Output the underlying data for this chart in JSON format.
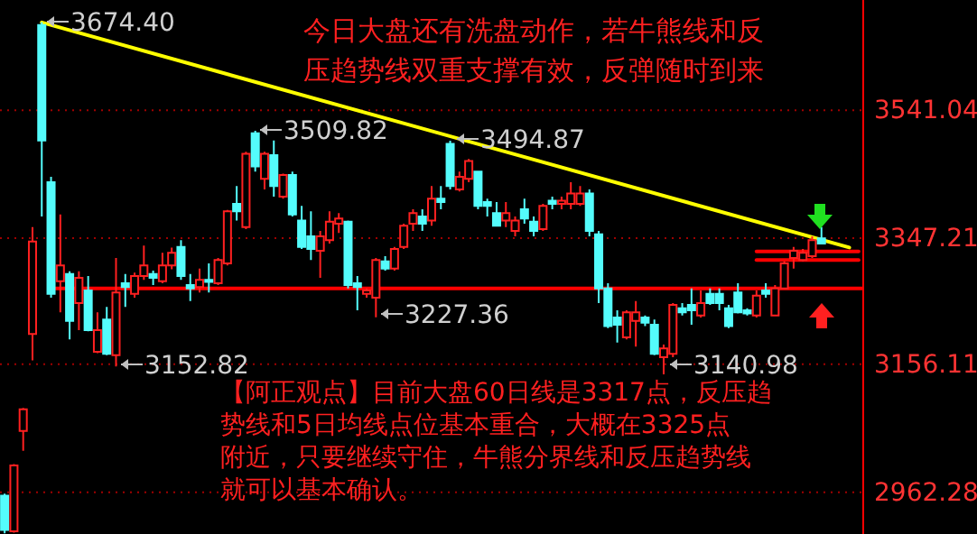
{
  "chart_data": {
    "type": "candlestick",
    "categories": [
      null,
      null,
      null,
      null,
      null,
      null,
      null,
      null,
      null,
      null,
      null,
      null,
      null,
      null,
      null,
      null,
      null,
      null,
      null,
      null,
      null,
      null,
      null,
      null,
      null,
      null,
      null,
      null,
      null,
      null,
      null,
      null,
      null,
      null,
      null,
      null,
      null,
      null,
      null,
      null,
      null,
      null,
      null,
      null,
      null,
      null,
      null,
      null,
      null,
      null,
      null,
      null,
      null,
      null,
      null,
      null,
      null,
      null,
      null,
      null,
      null,
      null,
      null,
      null,
      null,
      null,
      null,
      null,
      null,
      null,
      null,
      null,
      null,
      null,
      null,
      null,
      null,
      null,
      null,
      null,
      null,
      null,
      null,
      null,
      null,
      null,
      null,
      null,
      null,
      null,
      null,
      null,
      null
    ],
    "ohlc": [
      [
        2957,
        2960,
        2900,
        2905
      ],
      [
        2903,
        3005,
        2901,
        3003
      ],
      [
        3055,
        3090,
        3025,
        3088
      ],
      [
        3202,
        3364,
        3162,
        3342
      ],
      [
        3670,
        3674.4,
        3380,
        3495
      ],
      [
        3432,
        3440,
        3257,
        3263
      ],
      [
        3282,
        3383,
        3235,
        3306
      ],
      [
        3293,
        3297,
        3194,
        3222
      ],
      [
        3249,
        3297,
        3208,
        3287
      ],
      [
        3268,
        3290,
        3206,
        3208
      ],
      [
        3175,
        3235,
        3173,
        3208
      ],
      [
        3224,
        3243,
        3170,
        3172
      ],
      [
        3170,
        3317,
        3152.82,
        3265
      ],
      [
        3279,
        3293,
        3243,
        3273
      ],
      [
        3263,
        3295,
        3257,
        3290
      ],
      [
        3290,
        3336,
        3284,
        3306
      ],
      [
        3293,
        3298,
        3276,
        3287
      ],
      [
        3282,
        3325,
        3279,
        3306
      ],
      [
        3306,
        3333,
        3300,
        3325
      ],
      [
        3334,
        3344,
        3284,
        3290
      ],
      [
        3276,
        3293,
        3252,
        3271
      ],
      [
        3273,
        3301,
        3265,
        3284
      ],
      [
        3284,
        3309,
        3265,
        3281
      ],
      [
        3279,
        3317,
        3276,
        3314
      ],
      [
        3309,
        3390,
        3306,
        3388
      ],
      [
        3399,
        3426,
        3374,
        3388
      ],
      [
        3364,
        3478,
        3361,
        3475
      ],
      [
        3506,
        3509.82,
        3448,
        3456
      ],
      [
        3437,
        3478,
        3421,
        3475
      ],
      [
        3473,
        3495,
        3410,
        3426
      ],
      [
        3410,
        3445,
        3407,
        3443
      ],
      [
        3443,
        3448,
        3380,
        3383
      ],
      [
        3374,
        3396,
        3331,
        3334
      ],
      [
        3350,
        3388,
        3314,
        3331
      ],
      [
        3328,
        3358,
        3287,
        3350
      ],
      [
        3344,
        3388,
        3339,
        3372
      ],
      [
        3369,
        3385,
        3355,
        3377
      ],
      [
        3372,
        3374,
        3271,
        3276
      ],
      [
        3279,
        3290,
        3238,
        3273
      ],
      [
        3263,
        3271,
        3257,
        3268
      ],
      [
        3257,
        3317,
        3227.36,
        3314
      ],
      [
        3312,
        3320,
        3298,
        3301
      ],
      [
        3301,
        3334,
        3298,
        3331
      ],
      [
        3334,
        3369,
        3331,
        3366
      ],
      [
        3369,
        3391,
        3358,
        3385
      ],
      [
        3380,
        3391,
        3358,
        3369
      ],
      [
        3374,
        3426,
        3366,
        3407
      ],
      [
        3407,
        3426,
        3391,
        3402
      ],
      [
        3490,
        3494.87,
        3421,
        3426
      ],
      [
        3421,
        3448,
        3418,
        3440
      ],
      [
        3437,
        3467,
        3432,
        3464
      ],
      [
        3448,
        3448,
        3391,
        3396
      ],
      [
        3402,
        3407,
        3380,
        3396
      ],
      [
        3385,
        3402,
        3366,
        3366
      ],
      [
        3374,
        3402,
        3364,
        3385
      ],
      [
        3358,
        3380,
        3350,
        3374
      ],
      [
        3391,
        3407,
        3369,
        3377
      ],
      [
        3372,
        3380,
        3350,
        3358
      ],
      [
        3361,
        3399,
        3358,
        3396
      ],
      [
        3404,
        3410,
        3391,
        3399
      ],
      [
        3399,
        3410,
        3391,
        3404
      ],
      [
        3399,
        3432,
        3391,
        3415
      ],
      [
        3399,
        3426,
        3396,
        3415
      ],
      [
        3415,
        3421,
        3350,
        3358
      ],
      [
        3353,
        3358,
        3249,
        3271
      ],
      [
        3271,
        3279,
        3211,
        3214
      ],
      [
        3227,
        3238,
        3189,
        3216
      ],
      [
        3197,
        3238,
        3194,
        3235
      ],
      [
        3222,
        3252,
        3183,
        3235
      ],
      [
        3227,
        3230,
        3214,
        3219
      ],
      [
        3216,
        3224,
        3170,
        3172
      ],
      [
        3167,
        3186,
        3140.98,
        3180
      ],
      [
        3172,
        3249,
        3167,
        3246
      ],
      [
        3241,
        3249,
        3230,
        3235
      ],
      [
        3246,
        3271,
        3216,
        3238
      ],
      [
        3230,
        3268,
        3227,
        3249
      ],
      [
        3263,
        3271,
        3246,
        3249
      ],
      [
        3263,
        3271,
        3238,
        3249
      ],
      [
        3241,
        3246,
        3211,
        3214
      ],
      [
        3265,
        3279,
        3233,
        3235
      ],
      [
        3238,
        3241,
        3230,
        3233
      ],
      [
        3230,
        3268,
        3227,
        3260
      ],
      [
        3268,
        3279,
        3257,
        3263
      ],
      [
        3230,
        3276,
        3230,
        3271
      ],
      [
        3271,
        3312,
        3271,
        3309
      ],
      [
        3317,
        3334,
        3301,
        3328
      ],
      [
        3314,
        3331,
        3312,
        3325
      ],
      [
        3320,
        3350,
        3317,
        3344
      ],
      [
        3347,
        3364,
        3339,
        3339
      ],
      null,
      null,
      null,
      null
    ],
    "series": [
      {
        "type": "line",
        "color": "#ffff00",
        "values": [
          null,
          null,
          null,
          null,
          3674,
          null,
          null,
          null,
          null,
          null,
          null,
          null,
          null,
          null,
          null,
          null,
          null,
          null,
          null,
          null,
          null,
          null,
          null,
          null,
          null,
          null,
          null,
          null,
          null,
          null,
          null,
          null,
          null,
          null,
          null,
          null,
          null,
          null,
          null,
          null,
          null,
          null,
          null,
          null,
          null,
          null,
          null,
          null,
          null,
          null,
          null,
          null,
          null,
          null,
          null,
          null,
          null,
          null,
          null,
          null,
          null,
          null,
          null,
          null,
          null,
          null,
          null,
          null,
          null,
          null,
          null,
          null,
          null,
          null,
          null,
          null,
          null,
          null,
          null,
          null,
          null,
          null,
          null,
          null,
          null,
          null,
          null,
          null,
          null,
          null,
          null,
          3333,
          null
        ]
      },
      {
        "type": "line",
        "color": "#ff0000",
        "values": [
          null,
          null,
          null,
          null,
          null,
          null,
          null,
          null,
          null,
          null,
          null,
          null,
          null,
          null,
          null,
          null,
          null,
          null,
          null,
          null,
          null,
          null,
          null,
          null,
          null,
          null,
          null,
          null,
          null,
          null,
          null,
          null,
          null,
          null,
          null,
          null,
          null,
          null,
          null,
          null,
          null,
          null,
          null,
          null,
          null,
          null,
          null,
          null,
          null,
          null,
          null,
          null,
          null,
          null,
          null,
          null,
          null,
          null,
          null,
          null,
          null,
          null,
          null,
          null,
          null,
          null,
          null,
          null,
          null,
          null,
          null,
          null,
          null,
          null,
          null,
          null,
          null,
          null,
          null,
          null,
          null,
          3327,
          3327,
          3327,
          3327,
          3327,
          3327,
          3327,
          3327,
          3327,
          3327,
          3327,
          3327
        ]
      },
      {
        "type": "line",
        "color": "#ff0000",
        "values": [
          null,
          null,
          null,
          null,
          null,
          null,
          null,
          null,
          null,
          null,
          null,
          null,
          null,
          null,
          null,
          null,
          null,
          null,
          null,
          null,
          null,
          null,
          null,
          null,
          null,
          null,
          null,
          null,
          null,
          null,
          null,
          null,
          null,
          null,
          null,
          null,
          null,
          null,
          null,
          null,
          null,
          null,
          null,
          null,
          null,
          null,
          null,
          null,
          null,
          null,
          null,
          null,
          null,
          null,
          null,
          null,
          null,
          null,
          null,
          null,
          null,
          null,
          null,
          null,
          null,
          null,
          null,
          null,
          null,
          null,
          null,
          null,
          null,
          null,
          null,
          null,
          null,
          null,
          null,
          null,
          null,
          3314,
          3314,
          3314,
          3314,
          3314,
          3314,
          3314,
          3314,
          3314,
          3314,
          3314,
          3314
        ]
      }
    ],
    "ylim": [
      2899,
      3708
    ],
    "yticks": [
      3541.04,
      3347.21,
      3156.11,
      2962.28
    ],
    "grid": "y",
    "ref_lines": [
      {
        "axis": "y",
        "value": 3271,
        "color": "#ff0000"
      }
    ],
    "annotations": [
      "今日大盘还有洗盘动作，若牛熊线和反压趋势线双重支撑有效，反弹随时到来",
      "【阿正观点】目前大盘60日线是3317点，反压趋势线和5日均线点位基本重合，大概在3325点附近，只要继续守住，牛熊分界线和反压趋势线就可以基本确认。",
      "3674.40",
      "3509.82",
      "3494.87",
      "3227.36",
      "3152.82",
      "3140.98"
    ]
  }
}
